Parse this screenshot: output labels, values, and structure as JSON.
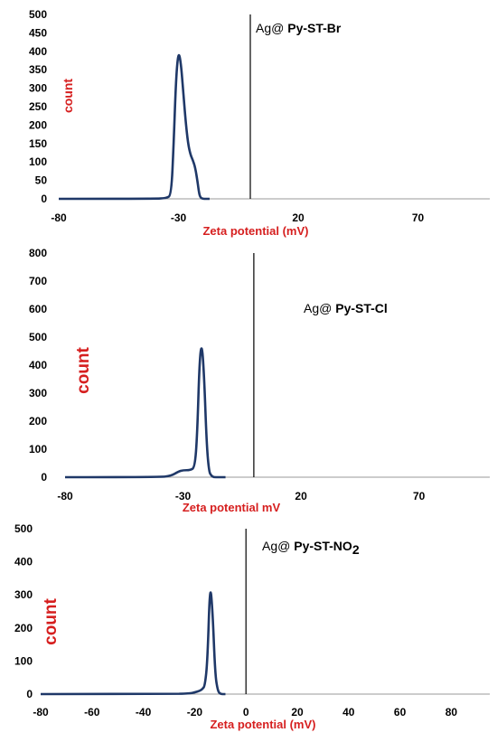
{
  "colors": {
    "series": "#1f3868",
    "axis_label": "#d61f1f",
    "axis_line": "#9a9a9a",
    "zero_line": "#000000"
  },
  "chart_data": [
    {
      "type": "line",
      "title": "",
      "annotation": {
        "prefix": "Ag@ ",
        "main": "Py-ST-Br",
        "sub": ""
      },
      "xlabel": "Zeta potential (mV)",
      "ylabel": "count",
      "xlim": [
        -80,
        100
      ],
      "ylim": [
        0,
        500
      ],
      "xticks": [
        -80,
        -30,
        20,
        70
      ],
      "yticks": [
        0,
        50,
        100,
        150,
        200,
        250,
        300,
        350,
        400,
        450,
        500
      ],
      "vline_x": 0,
      "grid": false,
      "series": [
        {
          "x": [
            -80,
            -40,
            -35,
            -33,
            -32,
            -31,
            -30,
            -29,
            -28,
            -27,
            -26,
            -25,
            -24,
            -23,
            -22,
            -21.5,
            -21,
            -20,
            -17
          ],
          "y": [
            0,
            0,
            2,
            10,
            150,
            330,
            400,
            370,
            290,
            210,
            150,
            120,
            105,
            85,
            45,
            20,
            5,
            0,
            0
          ]
        }
      ]
    },
    {
      "type": "line",
      "title": "",
      "annotation": {
        "prefix": "Ag@ ",
        "main": "Py-ST-Cl",
        "sub": ""
      },
      "xlabel": "Zeta potential mV",
      "ylabel": "count",
      "xlim": [
        -80,
        100
      ],
      "ylim": [
        0,
        800
      ],
      "xticks": [
        -80,
        -30,
        20,
        70
      ],
      "yticks": [
        0,
        100,
        200,
        300,
        400,
        500,
        600,
        700,
        800
      ],
      "vline_x": 0,
      "grid": false,
      "series": [
        {
          "x": [
            -80,
            -40,
            -35,
            -32,
            -30,
            -27,
            -25,
            -24,
            -23,
            -22,
            -21,
            -20,
            -19,
            -18,
            -17,
            -15,
            -12
          ],
          "y": [
            0,
            0,
            5,
            20,
            25,
            25,
            35,
            150,
            420,
            480,
            350,
            120,
            20,
            5,
            0,
            0,
            0
          ]
        }
      ]
    },
    {
      "type": "line",
      "title": "",
      "annotation": {
        "prefix": "Ag@ ",
        "main": "Py-ST-NO",
        "sub": "2"
      },
      "xlabel": "Zeta potential (mV)",
      "ylabel": "count",
      "xlim": [
        -80,
        95
      ],
      "ylim": [
        0,
        500
      ],
      "xticks": [
        -80,
        -60,
        -40,
        -20,
        0,
        20,
        40,
        60,
        80
      ],
      "yticks": [
        0,
        100,
        200,
        300,
        400,
        500
      ],
      "vline_x": 0,
      "grid": false,
      "series": [
        {
          "x": [
            -80,
            -30,
            -22,
            -20,
            -18,
            -17,
            -16,
            -15,
            -14,
            -13,
            -12,
            -11,
            -10,
            -8
          ],
          "y": [
            0,
            0,
            2,
            5,
            10,
            15,
            25,
            100,
            340,
            250,
            60,
            10,
            0,
            0
          ]
        }
      ]
    }
  ]
}
